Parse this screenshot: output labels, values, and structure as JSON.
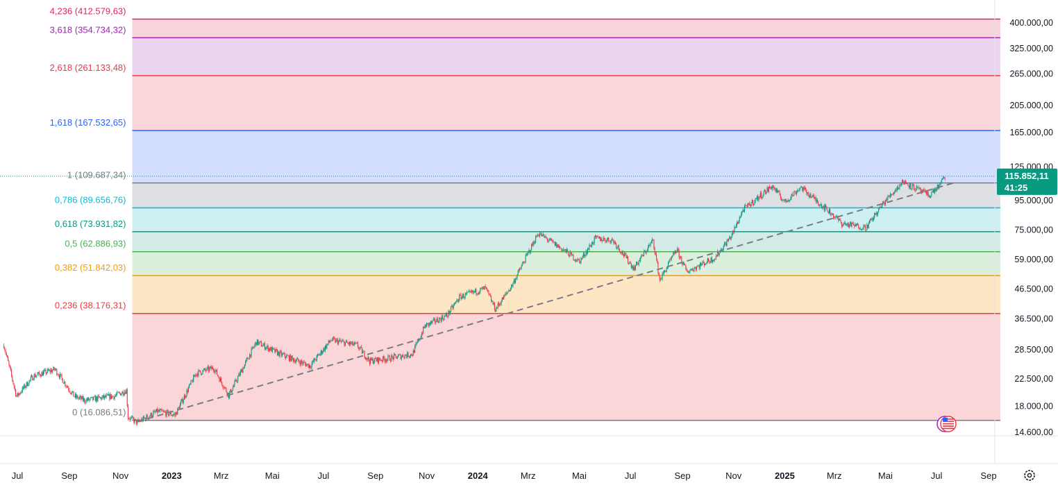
{
  "chart_data": {
    "type": "candlestick",
    "y_scale": "log",
    "ylim": [
      14600,
      400000
    ],
    "price_axis_ticks": [
      {
        "value": 400000,
        "label": "400.000,00"
      },
      {
        "value": 325000,
        "label": "325.000,00"
      },
      {
        "value": 265000,
        "label": "265.000,00"
      },
      {
        "value": 205000,
        "label": "205.000,00"
      },
      {
        "value": 165000,
        "label": "165.000,00"
      },
      {
        "value": 125000,
        "label": "125.000,00"
      },
      {
        "value": 95000,
        "label": "95.000,00"
      },
      {
        "value": 75000,
        "label": "75.000,00"
      },
      {
        "value": 59000,
        "label": "59.000,00"
      },
      {
        "value": 46500,
        "label": "46.500,00"
      },
      {
        "value": 36500,
        "label": "36.500,00"
      },
      {
        "value": 28500,
        "label": "28.500,00"
      },
      {
        "value": 22500,
        "label": "22.500,00"
      },
      {
        "value": 18000,
        "label": "18.000,00"
      },
      {
        "value": 14600,
        "label": "14.600,00"
      }
    ],
    "time_axis_ticks": [
      {
        "date": "2022-07-01",
        "label": "Jul",
        "year": false
      },
      {
        "date": "2022-09-01",
        "label": "Sep",
        "year": false
      },
      {
        "date": "2022-11-01",
        "label": "Nov",
        "year": false
      },
      {
        "date": "2023-01-01",
        "label": "2023",
        "year": true
      },
      {
        "date": "2023-03-01",
        "label": "Mrz",
        "year": false
      },
      {
        "date": "2023-05-01",
        "label": "Mai",
        "year": false
      },
      {
        "date": "2023-07-01",
        "label": "Jul",
        "year": false
      },
      {
        "date": "2023-09-01",
        "label": "Sep",
        "year": false
      },
      {
        "date": "2023-11-01",
        "label": "Nov",
        "year": false
      },
      {
        "date": "2024-01-01",
        "label": "2024",
        "year": true
      },
      {
        "date": "2024-03-01",
        "label": "Mrz",
        "year": false
      },
      {
        "date": "2024-05-01",
        "label": "Mai",
        "year": false
      },
      {
        "date": "2024-07-01",
        "label": "Jul",
        "year": false
      },
      {
        "date": "2024-09-01",
        "label": "Sep",
        "year": false
      },
      {
        "date": "2024-11-01",
        "label": "Nov",
        "year": false
      },
      {
        "date": "2025-01-01",
        "label": "2025",
        "year": true
      },
      {
        "date": "2025-03-01",
        "label": "Mrz",
        "year": false
      },
      {
        "date": "2025-05-01",
        "label": "Mai",
        "year": false
      },
      {
        "date": "2025-07-01",
        "label": "Jul",
        "year": false
      },
      {
        "date": "2025-09-01",
        "label": "Sep",
        "year": false
      }
    ],
    "fib_extension": {
      "start_date": "2022-11-15",
      "end_date": "2025-09-15",
      "levels": [
        {
          "ratio": "4,236",
          "price": 412579.63,
          "label": "4,236 (412.579,63)",
          "color": "#e91e63",
          "fill": "#f8d3dc"
        },
        {
          "ratio": "3,618",
          "price": 354734.32,
          "label": "3,618 (354.734,32)",
          "color": "#9c27b0",
          "fill": "#ead4ef"
        },
        {
          "ratio": "2,618",
          "price": 261133.48,
          "label": "2,618 (261.133,48)",
          "color": "#f23645",
          "fill": "#fbd6d8"
        },
        {
          "ratio": "1,618",
          "price": 167532.65,
          "label": "1,618 (167.532,65)",
          "color": "#2962ff",
          "fill": "#d3ddfe"
        },
        {
          "ratio": "1",
          "price": 109687.34,
          "label": "1 (109.687,34)",
          "color": "#787b86",
          "fill": "#dedfe3"
        },
        {
          "ratio": "0,786",
          "price": 89656.76,
          "label": "0,786 (89.656,76)",
          "color": "#00bcd4",
          "fill": "#cff0f3"
        },
        {
          "ratio": "0,618",
          "price": 73931.82,
          "label": "0,618 (73.931,82)",
          "color": "#089981",
          "fill": "#d2ebe6"
        },
        {
          "ratio": "0,5",
          "price": 62886.93,
          "label": "0,5 (62.886,93)",
          "color": "#4caf50",
          "fill": "#dcefdc"
        },
        {
          "ratio": "0,382",
          "price": 51842.03,
          "label": "0,382 (51.842,03)",
          "color": "#ff9800",
          "fill": "#fde6c4"
        },
        {
          "ratio": "0,236",
          "price": 38176.31,
          "label": "0,236 (38.176,31)",
          "color": "#f23645",
          "fill": "#fbd6d8"
        },
        {
          "ratio": "0",
          "price": 16086.51,
          "label": "0 (16.086,51)",
          "color": "#787b86",
          "fill": null
        }
      ]
    },
    "trendline": {
      "style": "dashed",
      "color": "#787b86",
      "start": {
        "date": "2022-11-21",
        "price": 15900
      },
      "end": {
        "date": "2025-07-22",
        "price": 109800
      }
    },
    "series": {
      "name": "",
      "up_color": "#089981",
      "down_color": "#f23645",
      "anchors": [
        {
          "date": "2022-06-15",
          "price": 29500
        },
        {
          "date": "2022-06-30",
          "price": 19500
        },
        {
          "date": "2022-07-20",
          "price": 23000
        },
        {
          "date": "2022-08-15",
          "price": 24300
        },
        {
          "date": "2022-09-07",
          "price": 19500
        },
        {
          "date": "2022-09-20",
          "price": 18900
        },
        {
          "date": "2022-10-25",
          "price": 19600
        },
        {
          "date": "2022-11-08",
          "price": 20500
        },
        {
          "date": "2022-11-10",
          "price": 16500
        },
        {
          "date": "2022-11-21",
          "price": 15800
        },
        {
          "date": "2022-12-15",
          "price": 17300
        },
        {
          "date": "2023-01-05",
          "price": 16800
        },
        {
          "date": "2023-01-30",
          "price": 23500
        },
        {
          "date": "2023-02-20",
          "price": 24600
        },
        {
          "date": "2023-03-10",
          "price": 19700
        },
        {
          "date": "2023-04-12",
          "price": 30300
        },
        {
          "date": "2023-05-10",
          "price": 27500
        },
        {
          "date": "2023-06-15",
          "price": 25000
        },
        {
          "date": "2023-07-10",
          "price": 30800
        },
        {
          "date": "2023-08-10",
          "price": 29500
        },
        {
          "date": "2023-08-25",
          "price": 26000
        },
        {
          "date": "2023-09-15",
          "price": 26500
        },
        {
          "date": "2023-10-15",
          "price": 27500
        },
        {
          "date": "2023-10-30",
          "price": 34500
        },
        {
          "date": "2023-11-25",
          "price": 37500
        },
        {
          "date": "2023-12-10",
          "price": 43500
        },
        {
          "date": "2024-01-10",
          "price": 46800
        },
        {
          "date": "2024-01-22",
          "price": 39500
        },
        {
          "date": "2024-02-10",
          "price": 47500
        },
        {
          "date": "2024-03-13",
          "price": 73000
        },
        {
          "date": "2024-04-15",
          "price": 63000
        },
        {
          "date": "2024-05-01",
          "price": 58000
        },
        {
          "date": "2024-05-20",
          "price": 70000
        },
        {
          "date": "2024-06-10",
          "price": 69000
        },
        {
          "date": "2024-07-05",
          "price": 55000
        },
        {
          "date": "2024-07-28",
          "price": 69000
        },
        {
          "date": "2024-08-05",
          "price": 50000
        },
        {
          "date": "2024-08-25",
          "price": 64000
        },
        {
          "date": "2024-09-06",
          "price": 53500
        },
        {
          "date": "2024-10-10",
          "price": 60000
        },
        {
          "date": "2024-10-30",
          "price": 72000
        },
        {
          "date": "2024-11-12",
          "price": 88000
        },
        {
          "date": "2024-12-17",
          "price": 107000
        },
        {
          "date": "2025-01-01",
          "price": 94000
        },
        {
          "date": "2025-01-20",
          "price": 106000
        },
        {
          "date": "2025-02-25",
          "price": 86000
        },
        {
          "date": "2025-03-10",
          "price": 79000
        },
        {
          "date": "2025-04-08",
          "price": 76500
        },
        {
          "date": "2025-05-01",
          "price": 95000
        },
        {
          "date": "2025-05-22",
          "price": 111000
        },
        {
          "date": "2025-06-22",
          "price": 99000
        },
        {
          "date": "2025-07-05",
          "price": 108000
        },
        {
          "date": "2025-07-11",
          "price": 115852
        }
      ]
    },
    "last_price": {
      "value": 115852.11,
      "label": "115.852,11",
      "countdown": "41:25",
      "color": "#089981"
    }
  },
  "icons": {
    "settings": "gear-icon",
    "flag": "us-flag-icon"
  }
}
